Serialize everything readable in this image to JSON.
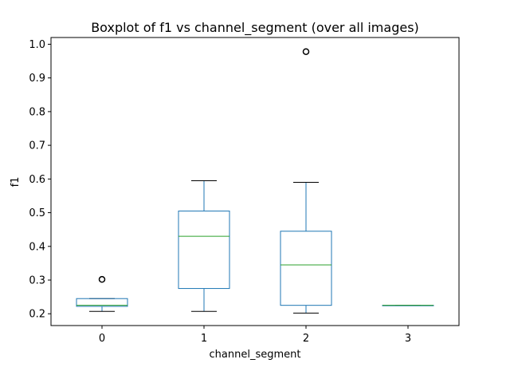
{
  "chart_data": {
    "type": "boxplot",
    "title": "Boxplot of f1 vs channel_segment (over all images)",
    "xlabel": "channel_segment",
    "ylabel": "f1",
    "categories": [
      "0",
      "1",
      "2",
      "3"
    ],
    "yticks": [
      "0.2",
      "0.3",
      "0.4",
      "0.5",
      "0.6",
      "0.7",
      "0.8",
      "0.9",
      "1.0"
    ],
    "ylim": [
      0.165,
      1.02
    ],
    "grid": false,
    "boxes": [
      {
        "category": "0",
        "whisker_low": 0.207,
        "q1": 0.222,
        "median": 0.225,
        "q3": 0.245,
        "whisker_high": 0.245,
        "outliers": [
          0.302
        ]
      },
      {
        "category": "1",
        "whisker_low": 0.207,
        "q1": 0.275,
        "median": 0.43,
        "q3": 0.505,
        "whisker_high": 0.595,
        "outliers": []
      },
      {
        "category": "2",
        "whisker_low": 0.202,
        "q1": 0.225,
        "median": 0.345,
        "q3": 0.445,
        "whisker_high": 0.59,
        "outliers": [
          0.978
        ]
      },
      {
        "category": "3",
        "whisker_low": 0.225,
        "q1": 0.225,
        "median": 0.225,
        "q3": 0.225,
        "whisker_high": 0.225,
        "outliers": []
      }
    ],
    "colors": {
      "box": "#1f77b4",
      "median": "#2ca02c",
      "whisker": "#000000",
      "outlier": "#000000"
    }
  }
}
